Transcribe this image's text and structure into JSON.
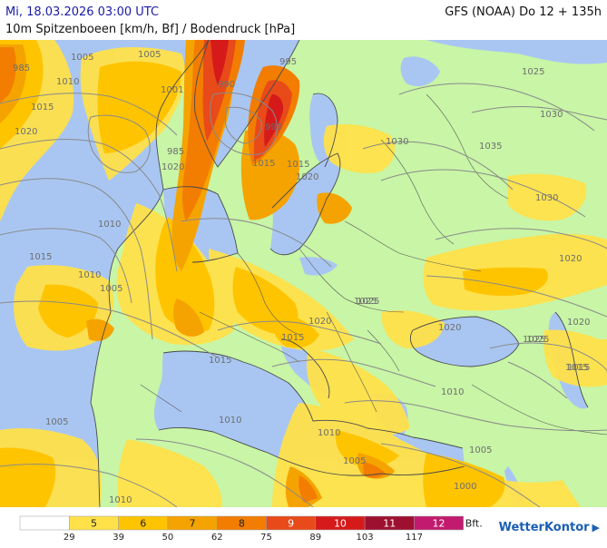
{
  "header": {
    "date": "Mi, 18.03.2026 03:00 UTC",
    "model": "GFS (NOAA) Do 12 + 135h",
    "subtitle": "10m Spitzenboeen [km/h, Bf] / Bodendruck [hPa]"
  },
  "legend": {
    "bft_labels": [
      "5",
      "6",
      "7",
      "8",
      "9",
      "10",
      "11",
      "12"
    ],
    "unit": "Bft.",
    "kmh_ticks": [
      "29",
      "39",
      "50",
      "62",
      "75",
      "89",
      "103",
      "117"
    ],
    "colors": [
      "#ffffff",
      "#ffe14a",
      "#ffc400",
      "#f5a300",
      "#f27d00",
      "#e84a1a",
      "#d61a1a",
      "#9e1030",
      "#c21a6e"
    ]
  },
  "map": {
    "colors": {
      "land": "#c8f5a6",
      "sea": "#a9c6f2",
      "gust5": "#ffe14a",
      "gust6": "#ffc400",
      "gust7": "#f5a300",
      "gust8": "#f27d00",
      "gust9": "#e84a1a",
      "gust10": "#d61a1a",
      "coast": "#4a4a4a",
      "isobar": "#8a8a8a"
    },
    "isobar_labels": [
      {
        "text": "985"
      },
      {
        "text": "1005"
      },
      {
        "text": "1010"
      },
      {
        "text": "1015"
      },
      {
        "text": "1020"
      },
      {
        "text": "1005"
      },
      {
        "text": "1001"
      },
      {
        "text": "990"
      },
      {
        "text": "985"
      },
      {
        "text": "995"
      },
      {
        "text": "1025"
      },
      {
        "text": "1030"
      },
      {
        "text": "1030"
      },
      {
        "text": "1035"
      },
      {
        "text": "1030"
      },
      {
        "text": "1010"
      },
      {
        "text": "1015"
      },
      {
        "text": "1010"
      },
      {
        "text": "1005"
      },
      {
        "text": "1015"
      },
      {
        "text": "1020"
      },
      {
        "text": "1020"
      },
      {
        "text": "1025"
      },
      {
        "text": "1020"
      },
      {
        "text": "1020"
      },
      {
        "text": "1025"
      },
      {
        "text": "1015"
      },
      {
        "text": "1015"
      },
      {
        "text": "1015"
      },
      {
        "text": "1020"
      },
      {
        "text": "1010"
      },
      {
        "text": "1010"
      },
      {
        "text": "1005"
      },
      {
        "text": "1010"
      },
      {
        "text": "1005"
      },
      {
        "text": "1005"
      },
      {
        "text": "1000"
      },
      {
        "text": "1010"
      },
      {
        "text": "1015"
      },
      {
        "text": "990"
      },
      {
        "text": "1015"
      },
      {
        "text": "1020"
      },
      {
        "text": "1025"
      },
      {
        "text": "1025"
      }
    ]
  },
  "branding": {
    "name": "WetterKontor"
  }
}
